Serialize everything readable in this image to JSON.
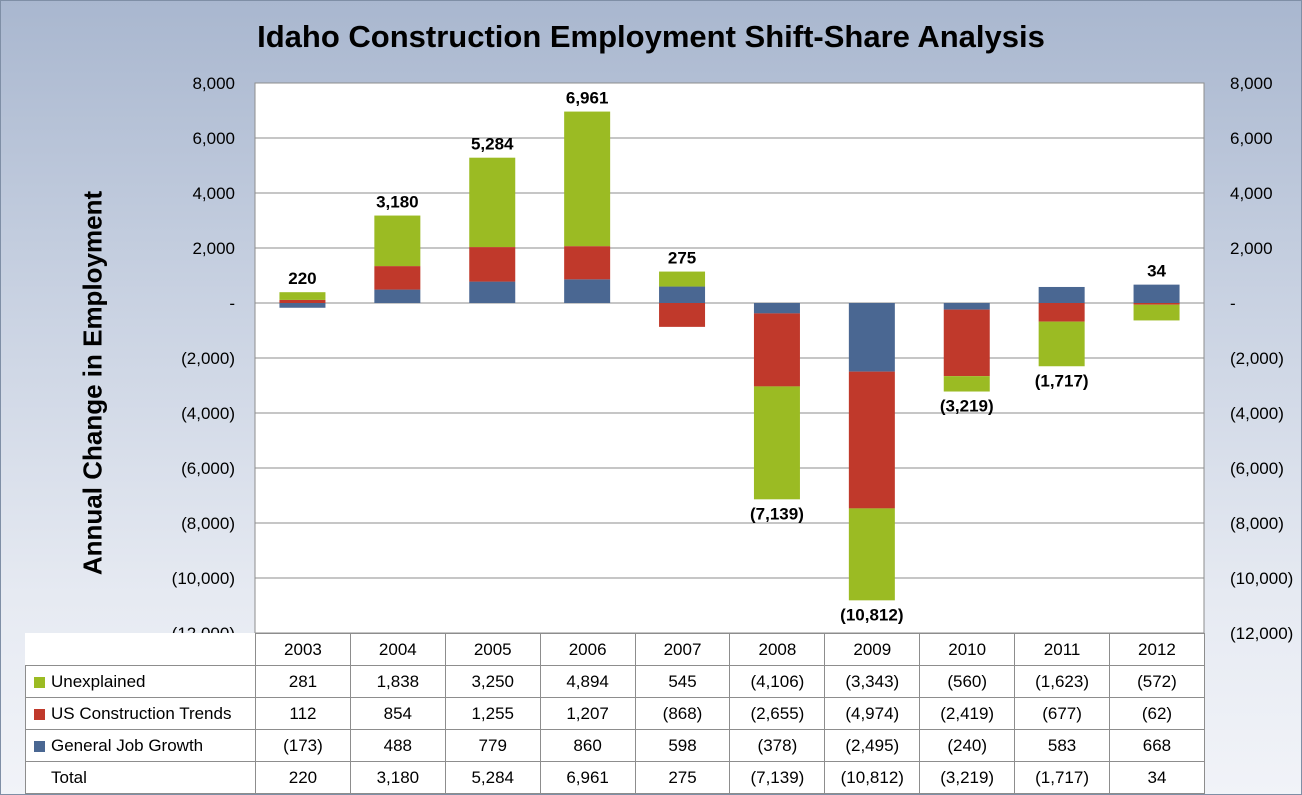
{
  "chart_data": {
    "type": "bar",
    "stacked": true,
    "title": "Idaho Construction Employment Shift-Share Analysis",
    "ylabel": "Annual Change in Employment",
    "xlabel": "",
    "ylim": [
      -12000,
      8000
    ],
    "yticks": [
      8000,
      6000,
      4000,
      2000,
      0,
      -2000,
      -4000,
      -6000,
      -8000,
      -10000,
      -12000
    ],
    "ytick_labels": [
      "8,000",
      "6,000",
      "4,000",
      "2,000",
      "-",
      "(2,000)",
      "(4,000)",
      "(6,000)",
      "(8,000)",
      "(10,000)",
      "(12,000)"
    ],
    "secondary_axis": true,
    "grid": true,
    "legend": "data-table",
    "categories": [
      "2003",
      "2004",
      "2005",
      "2006",
      "2007",
      "2008",
      "2009",
      "2010",
      "2011",
      "2012"
    ],
    "series": [
      {
        "name": "Unexplained",
        "color": "#9bbb23",
        "values": [
          281,
          1838,
          3250,
          4894,
          545,
          -4106,
          -3343,
          -560,
          -1623,
          -572
        ],
        "labels": [
          "281",
          "1,838",
          "3,250",
          "4,894",
          "545",
          "(4,106)",
          "(3,343)",
          "(560)",
          "(1,623)",
          "(572)"
        ]
      },
      {
        "name": "US Construction Trends",
        "color": "#c0392b",
        "values": [
          112,
          854,
          1255,
          1207,
          -868,
          -2655,
          -4974,
          -2419,
          -677,
          -62
        ],
        "labels": [
          "112",
          "854",
          "1,255",
          "1,207",
          "(868)",
          "(2,655)",
          "(4,974)",
          "(2,419)",
          "(677)",
          "(62)"
        ]
      },
      {
        "name": "General Job Growth",
        "color": "#4a6792",
        "values": [
          -173,
          488,
          779,
          860,
          598,
          -378,
          -2495,
          -240,
          583,
          668
        ],
        "labels": [
          "(173)",
          "488",
          "779",
          "860",
          "598",
          "(378)",
          "(2,495)",
          "(240)",
          "583",
          "668"
        ]
      }
    ],
    "totals": {
      "name": "Total",
      "values": [
        220,
        3180,
        5284,
        6961,
        275,
        -7139,
        -10812,
        -3219,
        -1717,
        34
      ],
      "labels": [
        "220",
        "3,180",
        "5,284",
        "6,961",
        "275",
        "(7,139)",
        "(10,812)",
        "(3,219)",
        "(1,717)",
        "34"
      ]
    }
  }
}
